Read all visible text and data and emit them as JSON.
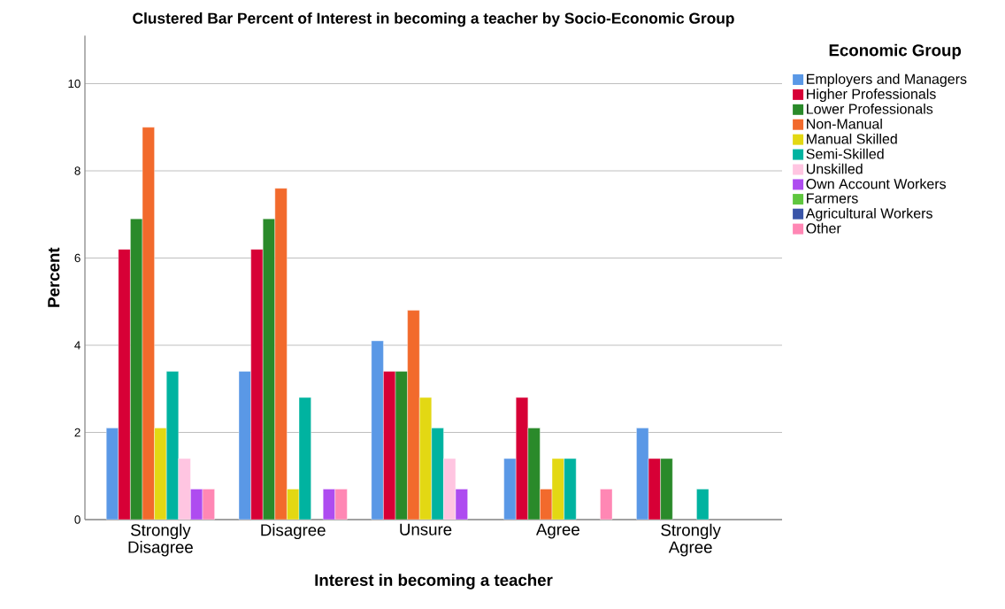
{
  "chart_data": {
    "type": "bar",
    "title": "Clustered Bar Percent of Interest in becoming a teacher by Socio-Economic Group",
    "xlabel": "Interest in becoming a teacher",
    "ylabel": "Percent",
    "legend_title": "Economic Group",
    "categories": [
      "Strongly Disagree",
      "Disagree",
      "Unsure",
      "Agree",
      "Strongly Agree"
    ],
    "series": [
      {
        "name": "Employers and Managers",
        "color": "#5a98e6",
        "values": [
          2.1,
          3.4,
          4.1,
          1.4,
          2.1
        ]
      },
      {
        "name": "Higher Professionals",
        "color": "#d70036",
        "values": [
          6.2,
          6.2,
          3.4,
          2.8,
          1.4
        ]
      },
      {
        "name": "Lower Professionals",
        "color": "#2a8a2a",
        "values": [
          6.9,
          6.9,
          3.4,
          2.1,
          1.4
        ]
      },
      {
        "name": "Non-Manual",
        "color": "#f26a2c",
        "values": [
          9.0,
          7.6,
          4.8,
          0.7,
          null
        ]
      },
      {
        "name": "Manual Skilled",
        "color": "#e3d813",
        "values": [
          2.1,
          0.7,
          2.8,
          1.4,
          null
        ]
      },
      {
        "name": "Semi-Skilled",
        "color": "#00b3a0",
        "values": [
          3.4,
          2.8,
          2.1,
          1.4,
          0.7
        ]
      },
      {
        "name": "Unskilled",
        "color": "#ffc5e1",
        "values": [
          1.4,
          null,
          1.4,
          null,
          null
        ]
      },
      {
        "name": "Own Account Workers",
        "color": "#ae4cf0",
        "values": [
          0.7,
          0.7,
          0.7,
          null,
          null
        ]
      },
      {
        "name": "Farmers",
        "color": "#5fc63f",
        "values": [
          null,
          null,
          null,
          null,
          null
        ]
      },
      {
        "name": "Agricultural Workers",
        "color": "#3a55a8",
        "values": [
          null,
          null,
          null,
          null,
          null
        ]
      },
      {
        "name": "Other",
        "color": "#ff87b4",
        "values": [
          0.7,
          0.7,
          null,
          0.7,
          null
        ]
      }
    ],
    "ylim": [
      0,
      11.1
    ],
    "yticks": [
      0,
      2,
      4,
      6,
      8,
      10
    ],
    "grid": "y",
    "legend": "top right"
  }
}
